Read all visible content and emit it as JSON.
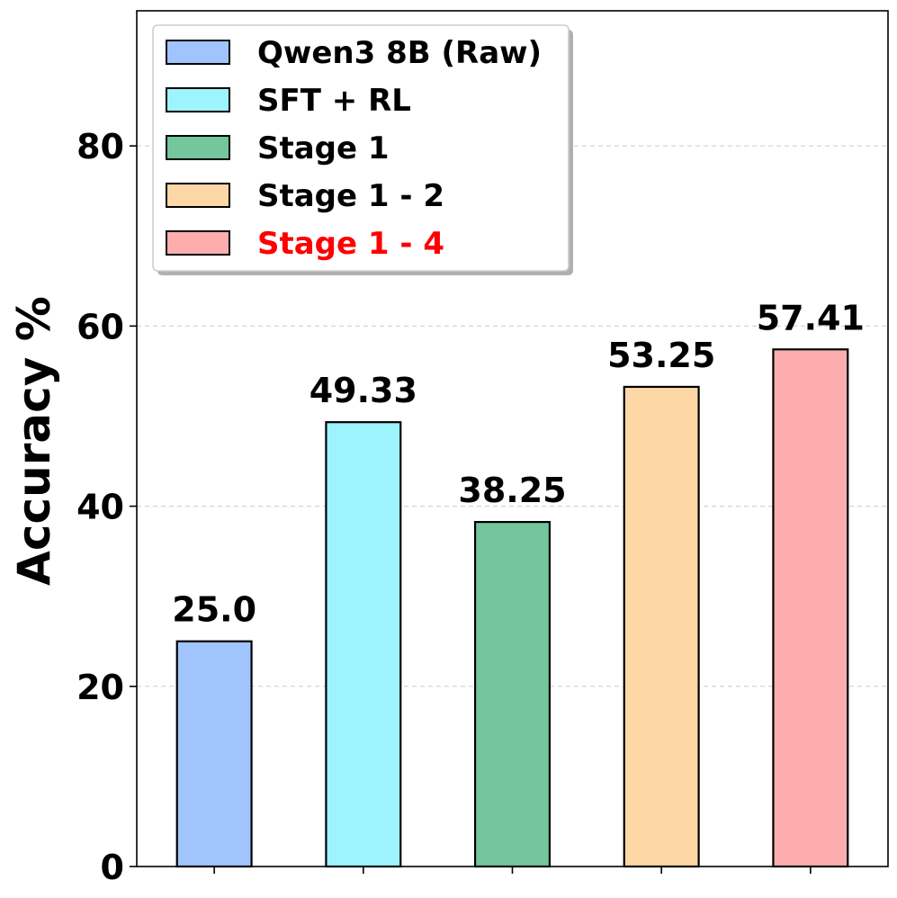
{
  "chart_data": {
    "type": "bar",
    "ylabel": "Accuracy %",
    "xlabel": "",
    "ylim": [
      0,
      95
    ],
    "yticks": [
      0,
      20,
      40,
      60,
      80
    ],
    "grid": "horizontal-dashed",
    "legend_position": "top-left",
    "series": [
      {
        "name": "Qwen3 8B (Raw)",
        "value": 25.0,
        "label": "25.0",
        "color": "#A1C4FD",
        "legend_text_color": "#000000"
      },
      {
        "name": "SFT + RL",
        "value": 49.33,
        "label": "49.33",
        "color": "#9DF4FE",
        "legend_text_color": "#000000"
      },
      {
        "name": "Stage 1",
        "value": 38.25,
        "label": "38.25",
        "color": "#74C69D",
        "legend_text_color": "#000000"
      },
      {
        "name": "Stage 1 - 2",
        "value": 53.25,
        "label": "53.25",
        "color": "#FDD7A5",
        "legend_text_color": "#000000"
      },
      {
        "name": "Stage 1 - 4",
        "value": 57.41,
        "label": "57.41",
        "color": "#FDADAD",
        "legend_text_color": "#FF0000"
      }
    ]
  }
}
